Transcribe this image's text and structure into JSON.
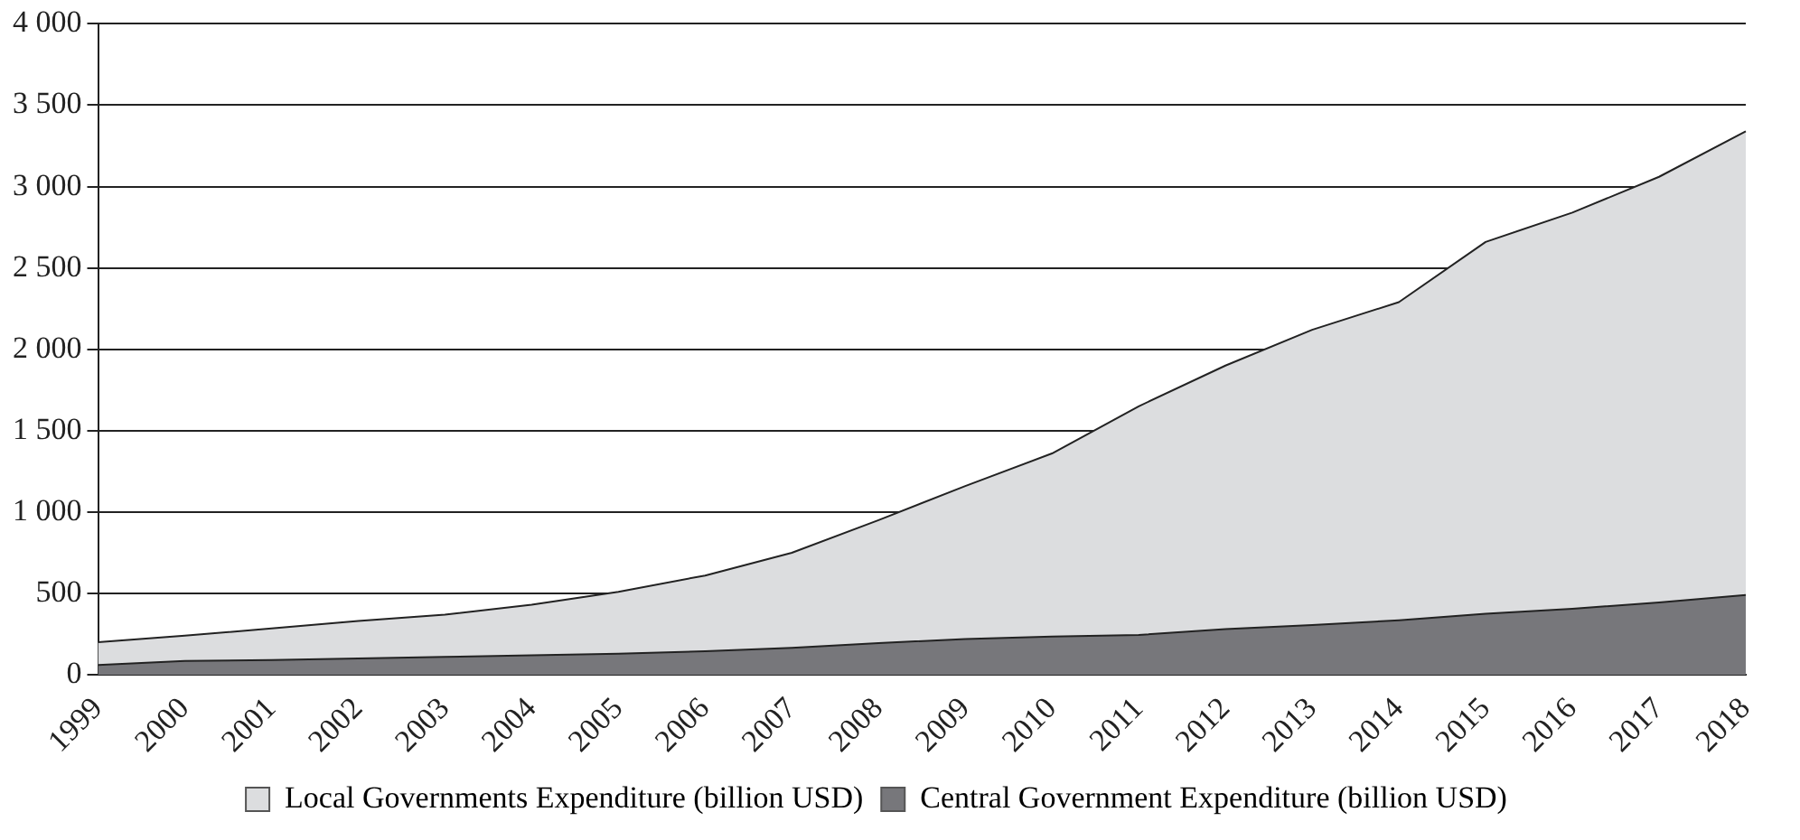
{
  "chart_data": {
    "type": "area",
    "stacked": true,
    "categories": [
      "1999",
      "2000",
      "2001",
      "2002",
      "2003",
      "2004",
      "2005",
      "2006",
      "2007",
      "2008",
      "2009",
      "2010",
      "2011",
      "2012",
      "2013",
      "2014",
      "2015",
      "2016",
      "2017",
      "2018"
    ],
    "series": [
      {
        "name": "Central Government Expenditure (billion USD)",
        "color": "#77777b",
        "values": [
          60,
          85,
          90,
          100,
          110,
          120,
          130,
          145,
          165,
          195,
          220,
          235,
          245,
          280,
          305,
          335,
          375,
          405,
          445,
          490
        ]
      },
      {
        "name": "Local Governments Expenditure (billion USD)",
        "color": "#dcdddf",
        "values": [
          140,
          155,
          195,
          230,
          260,
          310,
          380,
          465,
          585,
          755,
          940,
          1125,
          1405,
          1620,
          1815,
          1955,
          2285,
          2435,
          2615,
          2850
        ]
      }
    ],
    "ylim": [
      0,
      4000
    ],
    "yticks": [
      0,
      500,
      {
        "value": 1000,
        "label": "1 000"
      },
      {
        "value": 1500,
        "label": "1 500"
      },
      {
        "value": 2000,
        "label": "2 000"
      },
      {
        "value": 2500,
        "label": "2 500"
      },
      {
        "value": 3000,
        "label": "3 000"
      },
      {
        "value": 3500,
        "label": "3 500"
      },
      {
        "value": 4000,
        "label": "4 000"
      }
    ],
    "grid": "y",
    "legend": "bottom"
  }
}
